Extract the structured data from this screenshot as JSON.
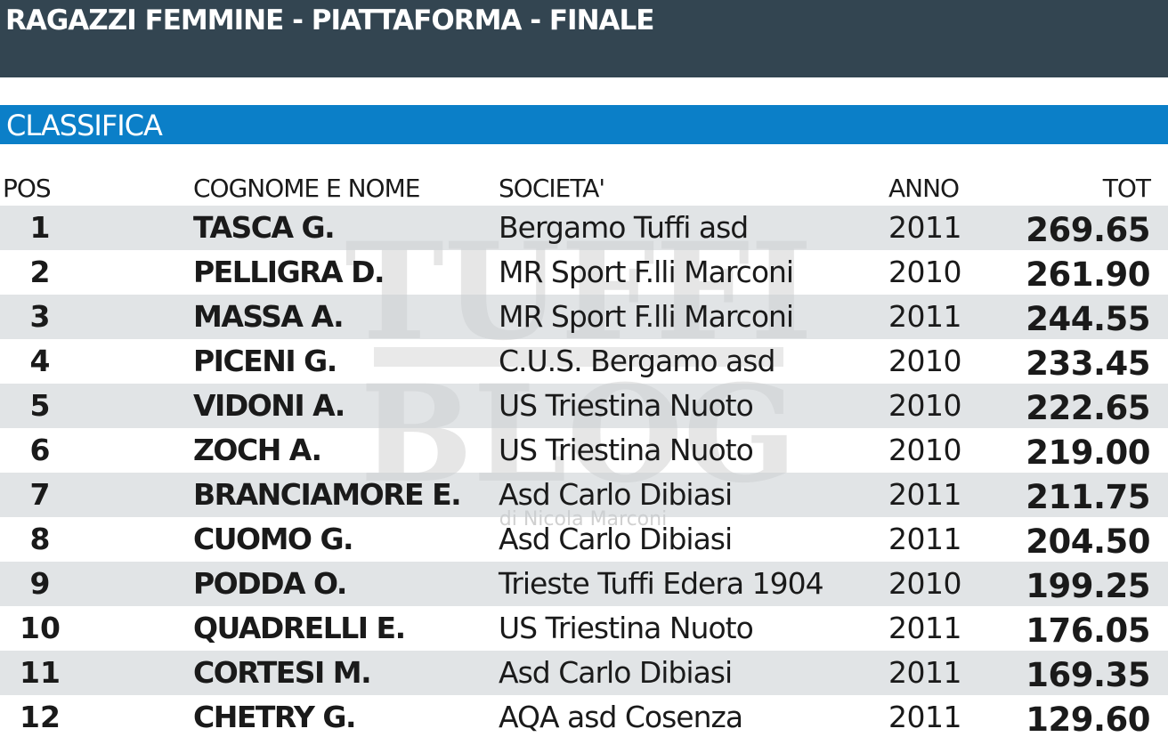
{
  "header": {
    "title": "RAGAZZI FEMMINE - PIATTAFORMA - FINALE"
  },
  "section": {
    "title": "CLASSIFICA"
  },
  "watermark": {
    "line1": "TUFFI",
    "line2": "BLOG",
    "line3": "di Nicola Marconi"
  },
  "columns": {
    "pos": "POS",
    "name": "COGNOME E NOME",
    "club": "SOCIETA'",
    "year": "ANNO",
    "total": "TOT"
  },
  "rows": [
    {
      "pos": "1",
      "name": "TASCA G.",
      "club": "Bergamo Tuffi asd",
      "year": "2011",
      "total": "269.65"
    },
    {
      "pos": "2",
      "name": "PELLIGRA D.",
      "club": "MR Sport F.lli Marconi",
      "year": "2010",
      "total": "261.90"
    },
    {
      "pos": "3",
      "name": "MASSA A.",
      "club": "MR Sport F.lli Marconi",
      "year": "2011",
      "total": "244.55"
    },
    {
      "pos": "4",
      "name": "PICENI G.",
      "club": "C.U.S. Bergamo asd",
      "year": "2010",
      "total": "233.45"
    },
    {
      "pos": "5",
      "name": "VIDONI A.",
      "club": "US Triestina Nuoto",
      "year": "2010",
      "total": "222.65"
    },
    {
      "pos": "6",
      "name": "ZOCH A.",
      "club": "US Triestina Nuoto",
      "year": "2010",
      "total": "219.00"
    },
    {
      "pos": "7",
      "name": "BRANCIAMORE E.",
      "club": "Asd Carlo Dibiasi",
      "year": "2011",
      "total": "211.75"
    },
    {
      "pos": "8",
      "name": "CUOMO G.",
      "club": "Asd Carlo Dibiasi",
      "year": "2011",
      "total": "204.50"
    },
    {
      "pos": "9",
      "name": "PODDA O.",
      "club": "Trieste Tuffi Edera 1904",
      "year": "2010",
      "total": "199.25"
    },
    {
      "pos": "10",
      "name": "QUADRELLI E.",
      "club": "US Triestina Nuoto",
      "year": "2011",
      "total": "176.05"
    },
    {
      "pos": "11",
      "name": "CORTESI M.",
      "club": "Asd Carlo Dibiasi",
      "year": "2011",
      "total": "169.35"
    },
    {
      "pos": "12",
      "name": "CHETRY G.",
      "club": "AQA asd Cosenza",
      "year": "2011",
      "total": "129.60"
    }
  ]
}
